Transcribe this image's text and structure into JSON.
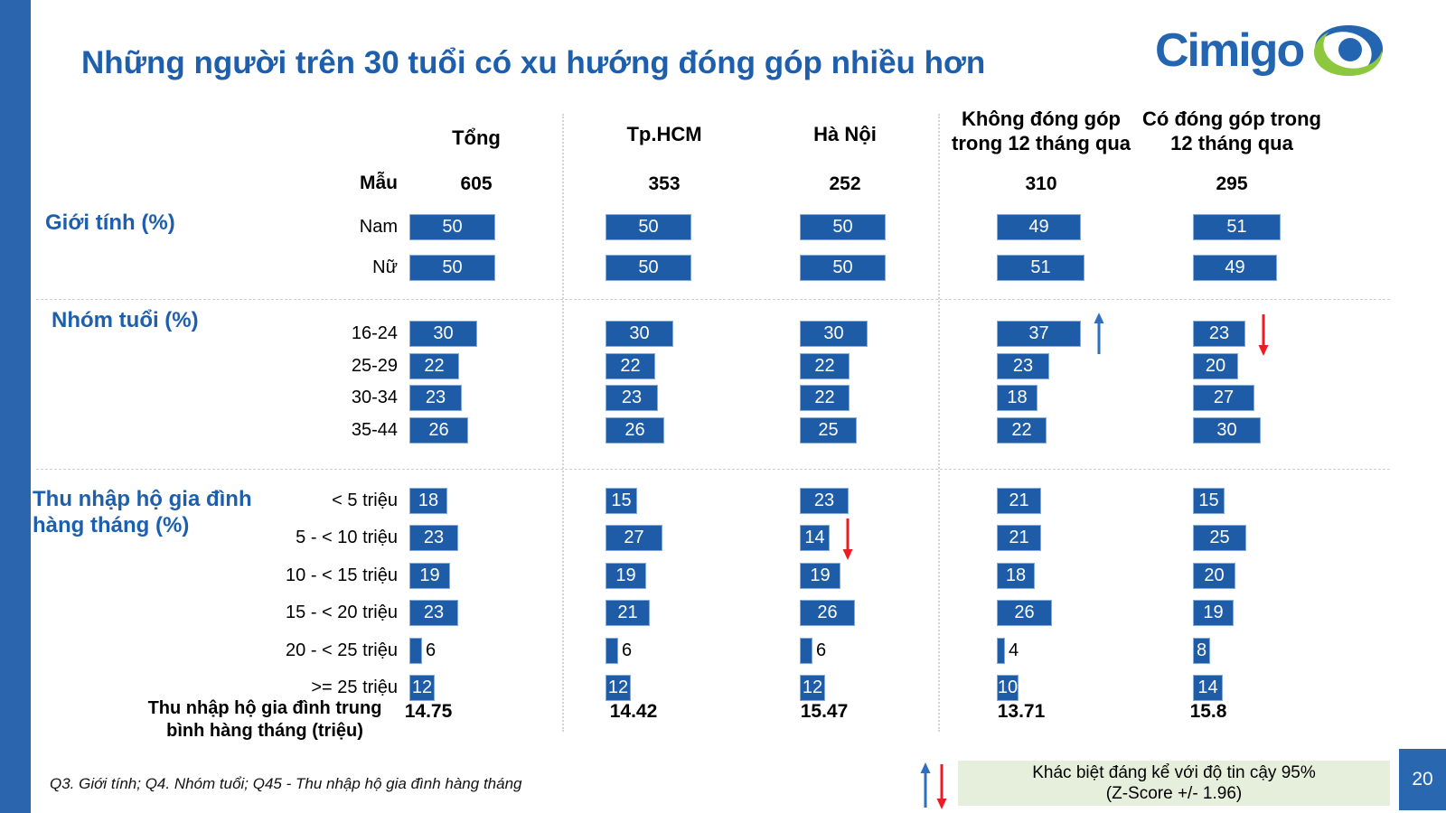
{
  "slide": {
    "title": "Những người trên 30 tuổi có xu hướng đóng góp nhiều hơn",
    "logo": {
      "wordmark": "Cimigo"
    },
    "page_number": "20",
    "footer_note": "Q3. Giới tính; Q4. Nhóm tuổi; Q45 - Thu nhập hộ gia đình hàng tháng",
    "legend": {
      "line1": "Khác biệt đáng kể với độ tin cậy 95%",
      "line2": "(Z-Score +/- 1.96)",
      "up_arrow_meaning": "significantly higher",
      "down_arrow_meaning": "significantly lower"
    }
  },
  "colors": {
    "accent_blue": "#1e5fad",
    "bar_fill": "#1f5ca8",
    "bar_border": "#86add8",
    "sidebar_blue": "#2a65ad",
    "arrow_up_blue": "#2f6fc1",
    "arrow_down_red": "#ec1c24",
    "legend_bg": "#e6efdb",
    "page_badge_bg": "#2a67b1",
    "logo_blue": "#2365b1",
    "logo_green": "#8dc63f"
  },
  "chart_data": {
    "type": "bar",
    "orientation": "horizontal",
    "unit": "%",
    "title": "Những người trên 30 tuổi có xu hướng đóng góp nhiều hơn",
    "sample_label": "Mẫu",
    "columns": [
      {
        "label": "Tổng",
        "sample": "605"
      },
      {
        "label": "Tp.HCM",
        "sample": "353"
      },
      {
        "label": "Hà Nội",
        "sample": "252"
      },
      {
        "label": "Không đóng góp trong 12 tháng qua",
        "sample": "310"
      },
      {
        "label": "Có đóng góp trong 12 tháng qua",
        "sample": "295"
      }
    ],
    "sections": [
      {
        "heading": "Giới tính (%)",
        "rows": [
          {
            "label": "Nam",
            "values": [
              50,
              50,
              50,
              49,
              51
            ]
          },
          {
            "label": "Nữ",
            "values": [
              50,
              50,
              50,
              51,
              49
            ]
          }
        ]
      },
      {
        "heading": "Nhóm tuổi (%)",
        "rows": [
          {
            "label": "16-24",
            "values": [
              30,
              30,
              30,
              37,
              23
            ],
            "arrows": [
              {
                "col": 3,
                "dir": "up"
              },
              {
                "col": 4,
                "dir": "down"
              }
            ]
          },
          {
            "label": "25-29",
            "values": [
              22,
              22,
              22,
              23,
              20
            ]
          },
          {
            "label": "30-34",
            "values": [
              23,
              23,
              22,
              18,
              27
            ]
          },
          {
            "label": "35-44",
            "values": [
              26,
              26,
              25,
              22,
              30
            ]
          }
        ]
      },
      {
        "heading": "Thu nhập hộ gia đình hàng tháng (%)",
        "rows": [
          {
            "label": "< 5 triệu",
            "values": [
              18,
              15,
              23,
              21,
              15
            ]
          },
          {
            "label": "5 - < 10 triệu",
            "values": [
              23,
              27,
              14,
              21,
              25
            ],
            "arrows": [
              {
                "col": 2,
                "dir": "down"
              }
            ]
          },
          {
            "label": "10 - < 15 triệu",
            "values": [
              19,
              19,
              19,
              18,
              20
            ]
          },
          {
            "label": "15 - < 20 triệu",
            "values": [
              23,
              21,
              26,
              26,
              19
            ]
          },
          {
            "label": "20 - < 25 triệu",
            "values": [
              6,
              6,
              6,
              4,
              8
            ]
          },
          {
            "label": ">= 25 triệu",
            "values": [
              12,
              12,
              12,
              10,
              14
            ]
          }
        ]
      }
    ],
    "mean_row": {
      "label": "Thu nhập hộ gia đình trung bình hàng tháng (triệu)",
      "values": [
        "14.75",
        "14.42",
        "15.47",
        "13.71",
        "15.8"
      ]
    }
  }
}
